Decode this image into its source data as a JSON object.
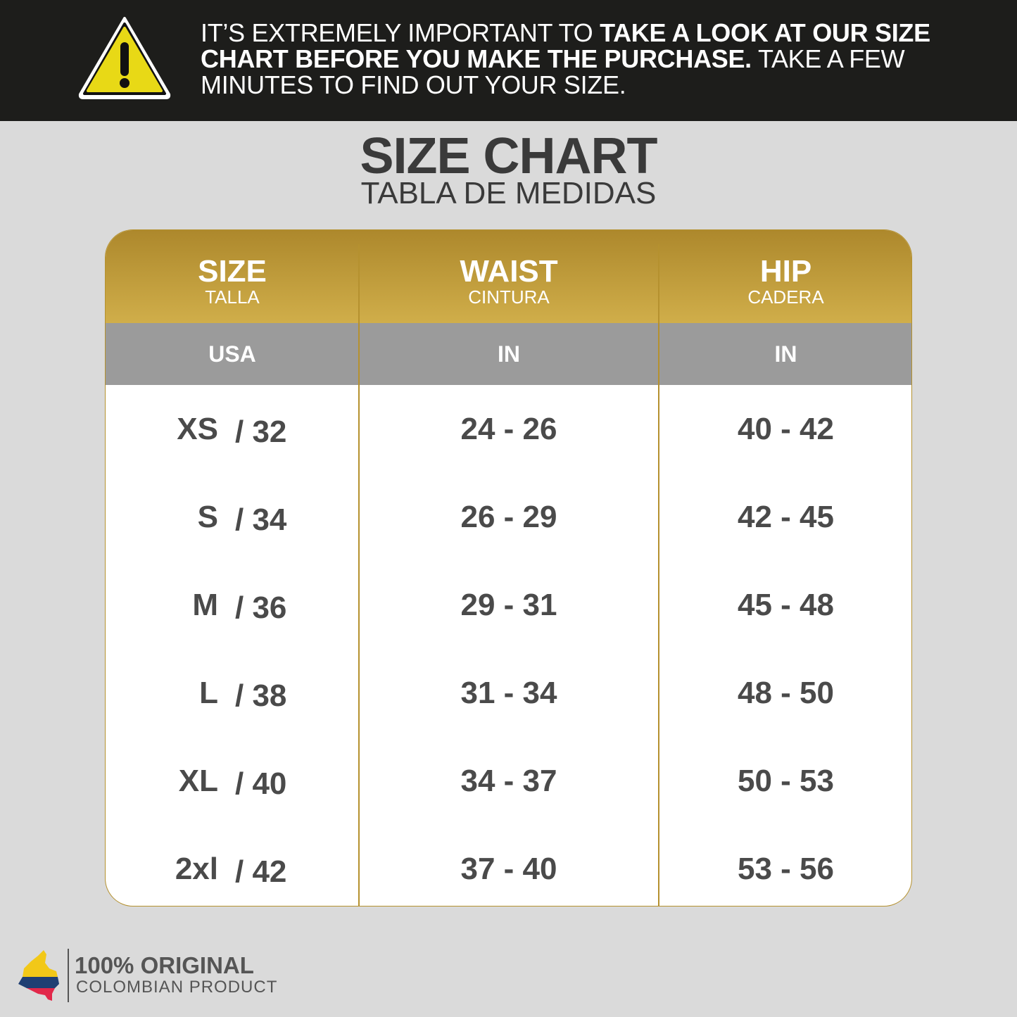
{
  "banner": {
    "icon": "warning-triangle-icon",
    "text_1": "IT’S EXTREMELY IMPORTANT TO ",
    "text_bold": "TAKE A LOOK AT OUR SIZE CHART BEFORE YOU MAKE THE PURCHASE.",
    "text_2": " TAKE A FEW MINUTES TO FIND OUT YOUR SIZE."
  },
  "title": "SIZE CHART",
  "subtitle": "TABLA DE MEDIDAS",
  "table": {
    "headers": [
      {
        "en": "SIZE",
        "es": "TALLA",
        "unit": "USA"
      },
      {
        "en": "WAIST",
        "es": "CINTURA",
        "unit": "IN"
      },
      {
        "en": "HIP",
        "es": "CADERA",
        "unit": "IN"
      }
    ],
    "rows": [
      {
        "size": "XS",
        "us": "/ 32",
        "waist": "24 - 26",
        "hip": "40 - 42"
      },
      {
        "size": "S",
        "us": "/ 34",
        "waist": "26 - 29",
        "hip": "42 - 45"
      },
      {
        "size": "M",
        "us": "/ 36",
        "waist": "29 - 31",
        "hip": "45 - 48"
      },
      {
        "size": "L",
        "us": "/ 38",
        "waist": "31 - 34",
        "hip": "48 - 50"
      },
      {
        "size": "XL",
        "us": "/ 40",
        "waist": "34 - 37",
        "hip": "50 - 53"
      },
      {
        "size": "2xl",
        "us": "/ 42",
        "waist": "37 - 40",
        "hip": "53 - 56"
      }
    ]
  },
  "footer": {
    "line1": "100% ORIGINAL",
    "line2": "COLOMBIAN PRODUCT",
    "icon": "colombia-flag-map-icon"
  },
  "colors": {
    "banner": "#1d1d1b",
    "gold": "#b5912f",
    "unit_row": "#9b9b9b",
    "warning": "#e8d916"
  }
}
